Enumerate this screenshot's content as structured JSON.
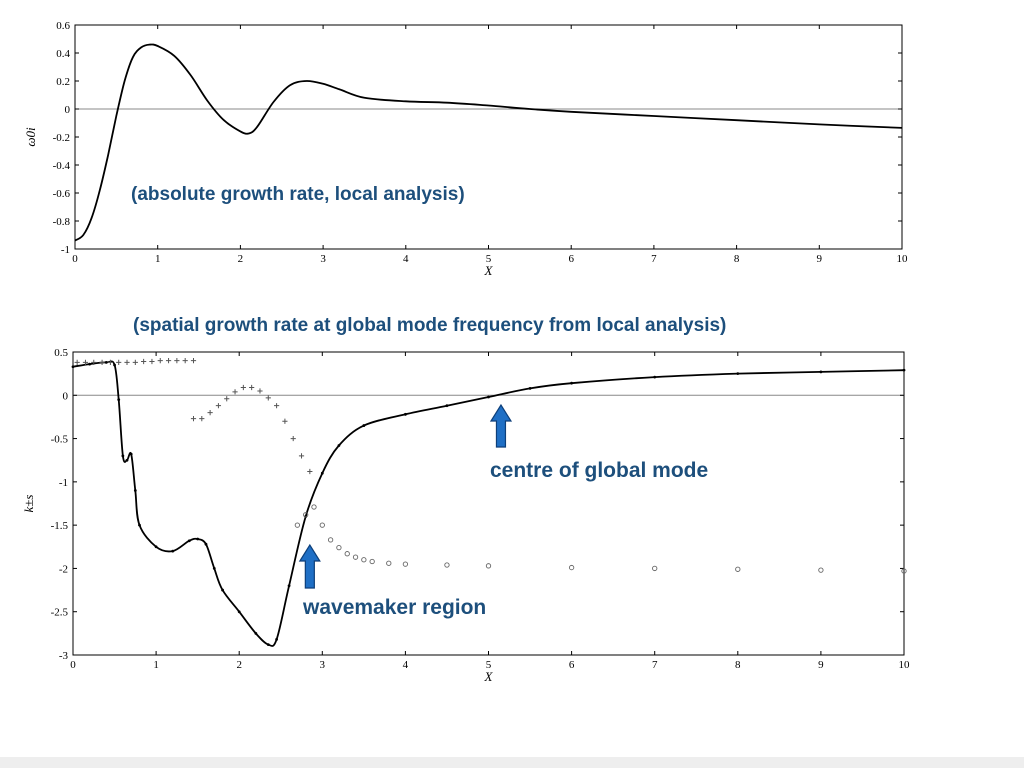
{
  "chart_data": [
    {
      "type": "line",
      "title": "",
      "xlabel": "X",
      "ylabel": "ω0i",
      "xlim": [
        0,
        10
      ],
      "ylim": [
        -1,
        0.6
      ],
      "xticks": [
        "0",
        "1",
        "2",
        "3",
        "4",
        "5",
        "6",
        "7",
        "8",
        "9",
        "10"
      ],
      "yticks": [
        "0.6",
        "0.4",
        "0.2",
        "0",
        "-0.2",
        "-0.4",
        "-0.6",
        "-0.8",
        "-1"
      ],
      "grid": false,
      "zero_line": true,
      "series": [
        {
          "style": "solid",
          "color": "#000000",
          "x": [
            0,
            0.1,
            0.2,
            0.3,
            0.4,
            0.5,
            0.6,
            0.7,
            0.8,
            0.9,
            1.0,
            1.2,
            1.4,
            1.6,
            1.8,
            2.0,
            2.1,
            2.2,
            2.4,
            2.6,
            2.8,
            3.0,
            3.2,
            3.5,
            4.0,
            4.5,
            5.0,
            5.5,
            6.0,
            7.0,
            8.0,
            9.0,
            10.0
          ],
          "y": [
            -0.94,
            -0.9,
            -0.78,
            -0.58,
            -0.33,
            -0.05,
            0.2,
            0.37,
            0.44,
            0.46,
            0.45,
            0.38,
            0.24,
            0.06,
            -0.08,
            -0.16,
            -0.175,
            -0.13,
            0.05,
            0.17,
            0.2,
            0.18,
            0.14,
            0.08,
            0.055,
            0.045,
            0.025,
            0.0,
            -0.02,
            -0.05,
            -0.08,
            -0.11,
            -0.135
          ]
        }
      ],
      "annotations": [
        {
          "text": "(absolute growth rate, local analysis)"
        }
      ]
    },
    {
      "type": "line",
      "title": "",
      "xlabel": "X",
      "ylabel": "k±s",
      "xlim": [
        0,
        10
      ],
      "ylim": [
        -3,
        0.5
      ],
      "xticks": [
        "0",
        "1",
        "2",
        "3",
        "4",
        "5",
        "6",
        "7",
        "8",
        "9",
        "10"
      ],
      "yticks": [
        "0.5",
        "0",
        "-0.5",
        "-1",
        "-1.5",
        "-2",
        "-2.5",
        "-3"
      ],
      "grid": false,
      "zero_line": true,
      "series": [
        {
          "style": "solid-with-dots",
          "color": "#000000",
          "x": [
            0,
            0.2,
            0.4,
            0.5,
            0.55,
            0.6,
            0.65,
            0.7,
            0.75,
            0.8,
            1.0,
            1.2,
            1.4,
            1.5,
            1.6,
            1.7,
            1.8,
            2.0,
            2.2,
            2.35,
            2.45,
            2.6,
            2.8,
            3.0,
            3.2,
            3.5,
            4.0,
            4.5,
            5.0,
            5.5,
            6.0,
            7.0,
            8.0,
            9.0,
            10.0
          ],
          "y": [
            0.33,
            0.36,
            0.38,
            0.35,
            -0.05,
            -0.7,
            -0.75,
            -0.68,
            -1.1,
            -1.5,
            -1.75,
            -1.8,
            -1.68,
            -1.66,
            -1.72,
            -2.0,
            -2.25,
            -2.5,
            -2.75,
            -2.88,
            -2.82,
            -2.2,
            -1.4,
            -0.9,
            -0.58,
            -0.35,
            -0.22,
            -0.12,
            -0.02,
            0.08,
            0.14,
            0.21,
            0.25,
            0.27,
            0.29
          ]
        },
        {
          "style": "circles",
          "color": "#666666",
          "x": [
            2.7,
            2.8,
            2.9,
            3.0,
            3.1,
            3.2,
            3.3,
            3.4,
            3.5,
            3.6,
            3.8,
            4.0,
            4.5,
            5.0,
            6.0,
            7.0,
            8.0,
            9.0,
            10.0
          ],
          "y": [
            -1.5,
            -1.38,
            -1.29,
            -1.5,
            -1.67,
            -1.76,
            -1.83,
            -1.87,
            -1.9,
            -1.92,
            -1.94,
            -1.95,
            -1.96,
            -1.97,
            -1.99,
            -2.0,
            -2.01,
            -2.02,
            -2.03
          ]
        },
        {
          "style": "plus",
          "color": "#555555",
          "x": [
            0.05,
            0.15,
            0.25,
            0.35,
            0.45,
            0.55,
            0.65,
            0.75,
            0.85,
            0.95,
            1.05,
            1.15,
            1.25,
            1.35,
            1.45,
            1.45,
            1.55,
            1.65,
            1.75,
            1.85,
            1.95,
            2.05,
            2.15,
            2.25,
            2.35,
            2.45,
            2.55,
            2.65,
            2.75,
            2.85
          ],
          "y": [
            0.38,
            0.38,
            0.38,
            0.38,
            0.38,
            0.38,
            0.38,
            0.38,
            0.39,
            0.39,
            0.4,
            0.4,
            0.4,
            0.4,
            0.4,
            -0.27,
            -0.27,
            -0.2,
            -0.12,
            -0.04,
            0.04,
            0.09,
            0.09,
            0.05,
            -0.03,
            -0.12,
            -0.3,
            -0.5,
            -0.7,
            -0.88
          ]
        }
      ],
      "annotations": [
        {
          "text": "(spatial growth rate at global mode frequency from local analysis)"
        },
        {
          "text": "centre of global mode",
          "arrow_at_x": 5.15
        },
        {
          "text": "wavemaker region",
          "arrow_at_x": 2.85
        }
      ]
    }
  ],
  "colors": {
    "annotation_text": "#1d4f7c",
    "arrow_fill": "#1f6fc5",
    "arrow_stroke": "#0d3f7a"
  }
}
